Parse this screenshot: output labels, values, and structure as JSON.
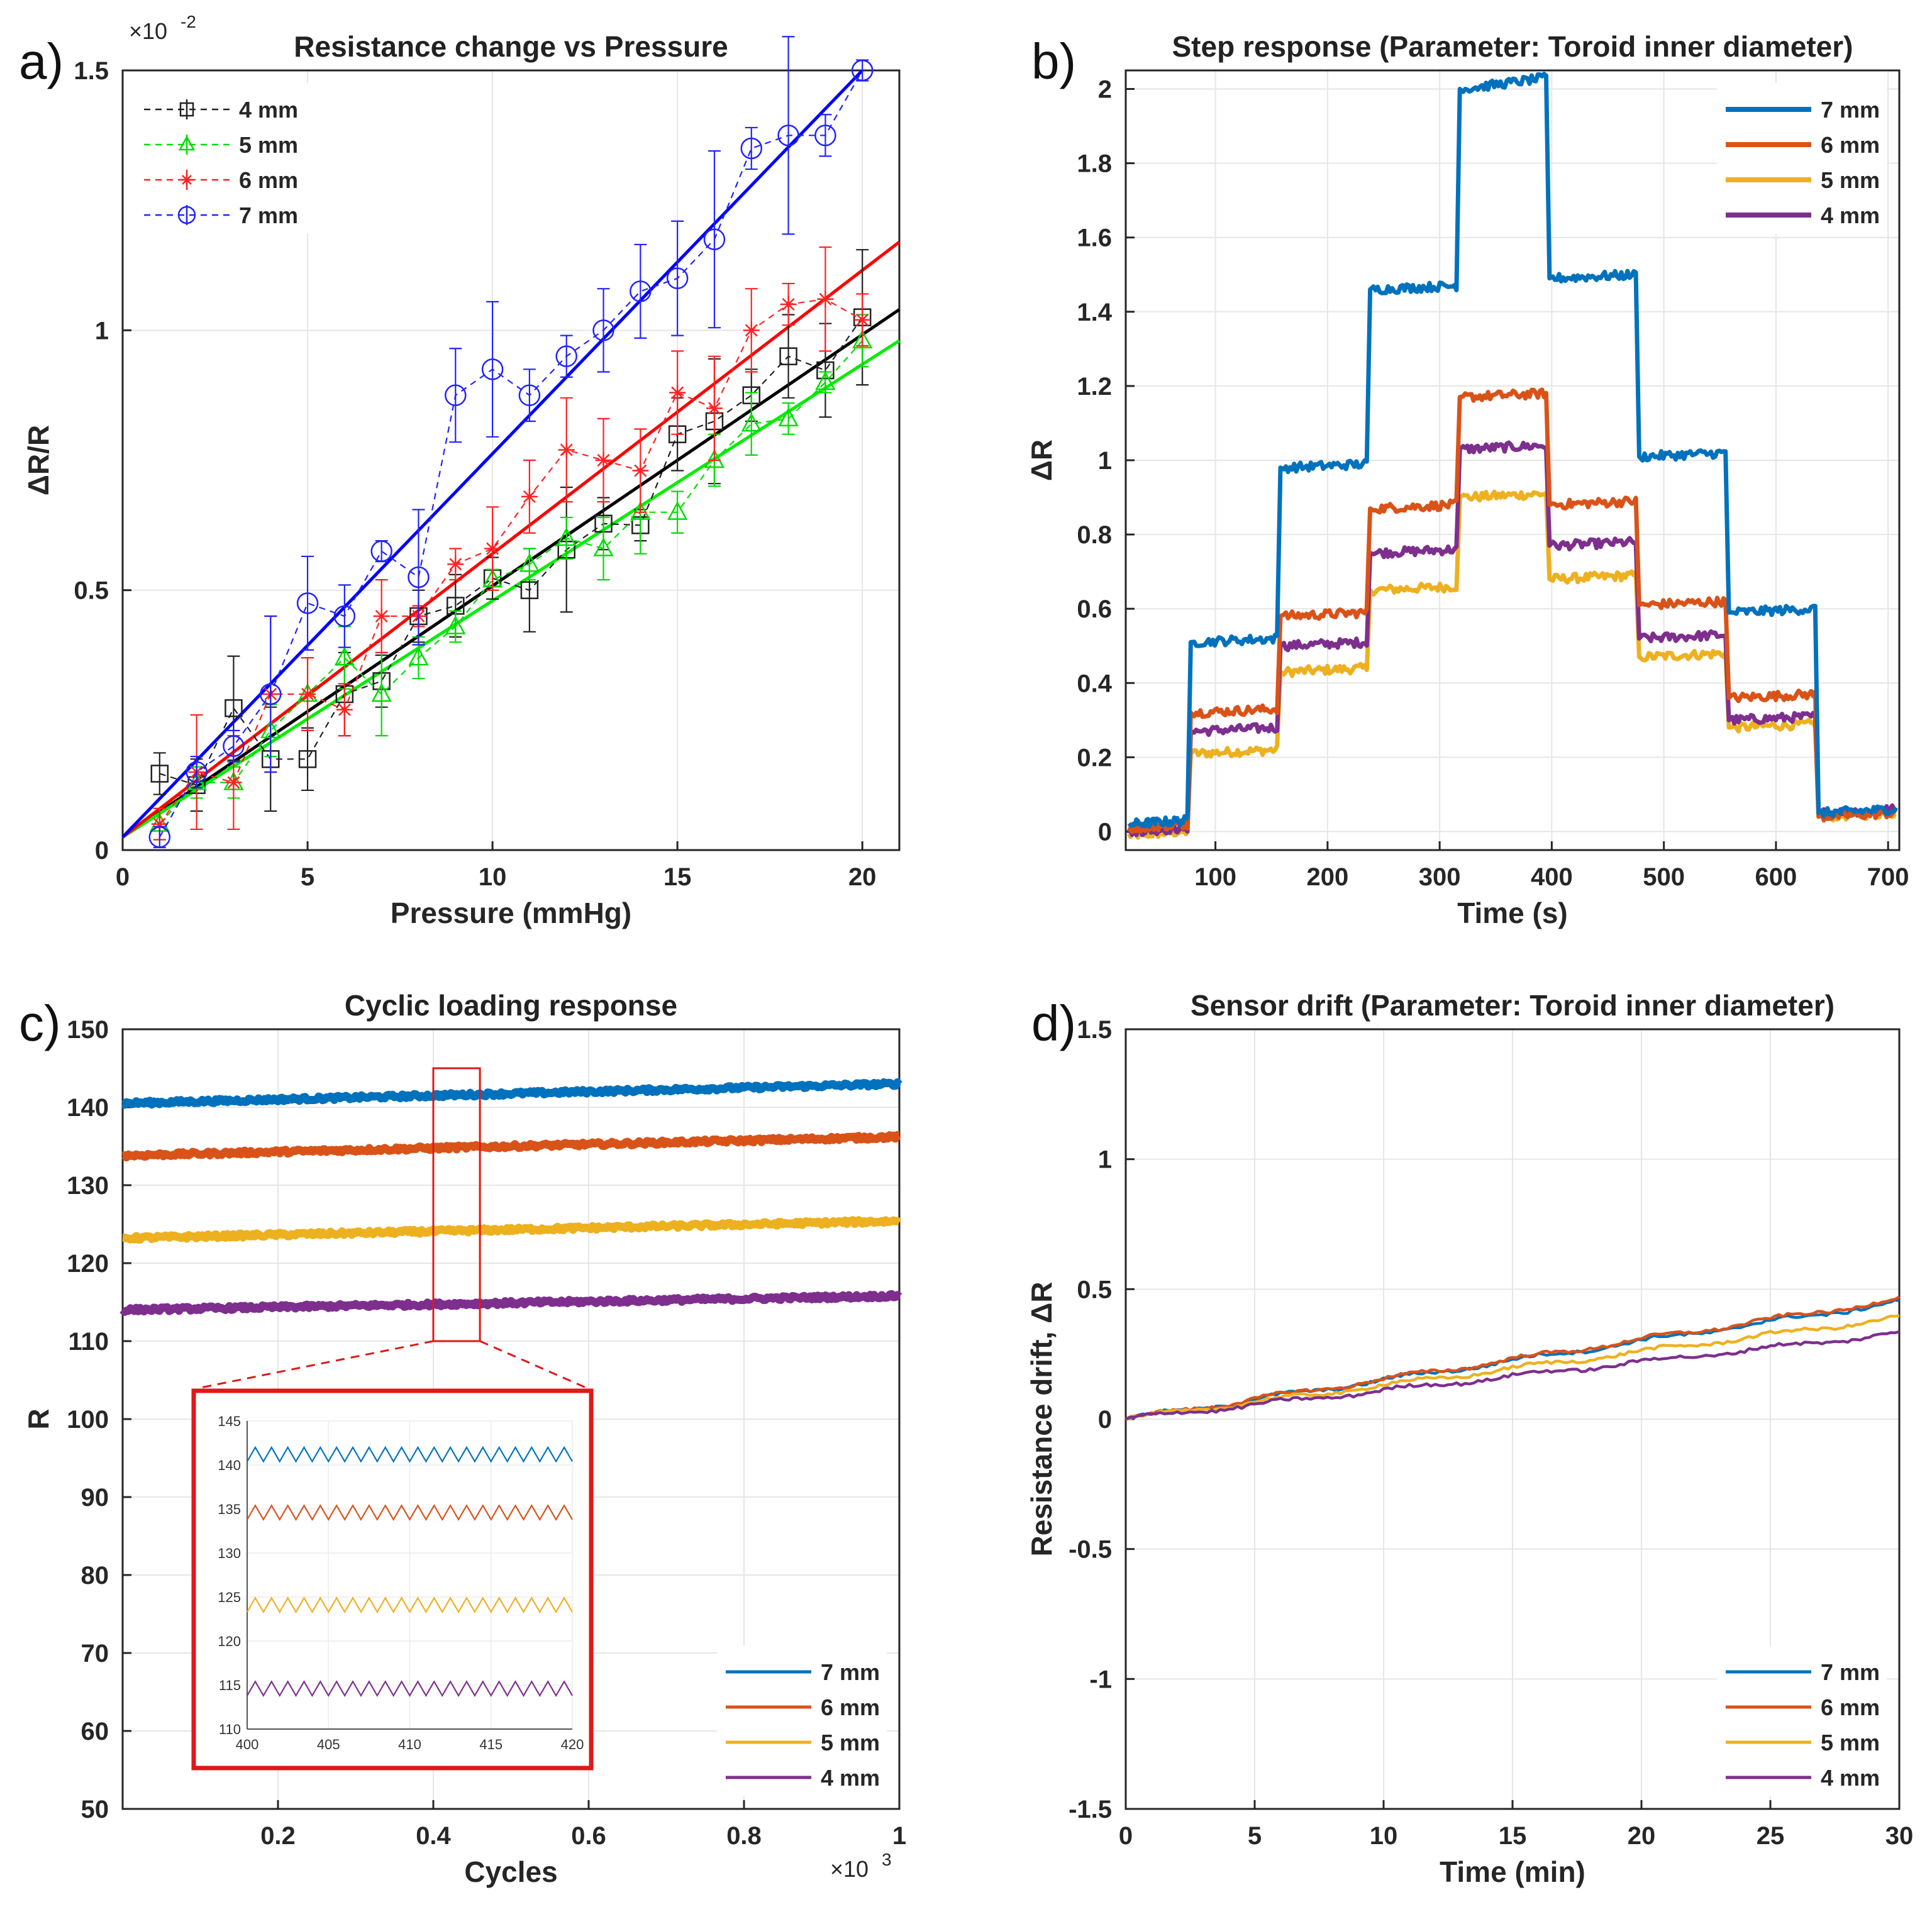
{
  "chart_data": [
    {
      "panel": "a)",
      "type": "line",
      "title": "Resistance change vs Pressure",
      "xlabel": "Pressure (mmHg)",
      "ylabel": "ΔR/R",
      "xlim": [
        0,
        21
      ],
      "ylim": [
        0,
        0.015
      ],
      "xticks": [
        0,
        5,
        10,
        15,
        20
      ],
      "xtick_labels": [
        "0",
        "5",
        "10",
        "15",
        "20"
      ],
      "yticks": [
        0,
        0.005,
        0.01,
        0.015
      ],
      "ytick_labels": [
        "0",
        "0.5",
        "1",
        "1.5"
      ],
      "y_multiplier": "×10",
      "y_multiplier_exp": "-2",
      "grid": true,
      "legend_position": "top-left",
      "x": [
        1,
        2,
        3,
        4,
        5,
        6,
        7,
        8,
        9,
        10,
        11,
        12,
        13,
        14,
        15,
        16,
        17,
        18,
        19,
        20
      ],
      "series": [
        {
          "name": "4 mm",
          "color": "#222222",
          "marker": "square",
          "values": [
            0.00147,
            0.00125,
            0.00273,
            0.00175,
            0.00175,
            0.003,
            0.00325,
            0.0045,
            0.0047,
            0.00523,
            0.005,
            0.00578,
            0.00628,
            0.00625,
            0.008,
            0.00825,
            0.00875,
            0.0095,
            0.00923,
            0.01025
          ],
          "errors": [
            0.0004,
            0.0005,
            0.001,
            0.001,
            0.0006,
            0.0008,
            0.0005,
            0.0005,
            0.0006,
            0.0004,
            0.0008,
            0.0012,
            0.0005,
            0.0003,
            0.0007,
            0.0012,
            0.0005,
            0.0008,
            0.0009,
            0.0013
          ],
          "fit": [
            0.00025,
            0.0104
          ]
        },
        {
          "name": "5 mm",
          "color": "#00dd00",
          "marker": "triangle",
          "values": [
            0.0005,
            0.0013,
            0.0013,
            0.0023,
            0.003,
            0.0037,
            0.003,
            0.0037,
            0.0043,
            0.0052,
            0.0055,
            0.006,
            0.0058,
            0.0065,
            0.0065,
            0.0075,
            0.0082,
            0.0083,
            0.009,
            0.0098
          ],
          "errors": [
            0.0003,
            0.0003,
            0.0003,
            0.0005,
            0.0007,
            0.0006,
            0.0008,
            0.0004,
            0.0003,
            0.0002,
            0.0003,
            0.0004,
            0.0006,
            0.0008,
            0.0004,
            0.0005,
            0.0006,
            0.0003,
            0.0002,
            0.0005
          ],
          "fit": [
            0.00025,
            0.0098
          ]
        },
        {
          "name": "6 mm",
          "color": "#ff2222",
          "marker": "star",
          "values": [
            0.0005,
            0.0015,
            0.0013,
            0.003,
            0.003,
            0.0027,
            0.0045,
            0.0045,
            0.0055,
            0.0058,
            0.0068,
            0.0077,
            0.0075,
            0.0073,
            0.0088,
            0.0085,
            0.01,
            0.0105,
            0.0106,
            0.0102
          ],
          "errors": [
            0.0003,
            0.0011,
            0.0009,
            0.0015,
            0.0007,
            0.0005,
            0.0007,
            0.0002,
            0.0003,
            0.0008,
            0.0007,
            0.001,
            0.0008,
            0.0008,
            0.0008,
            0.001,
            0.0008,
            0.0004,
            0.001,
            0.0005
          ],
          "fit": [
            0.00025,
            0.0117
          ]
        },
        {
          "name": "7 mm",
          "color": "#2222ff",
          "marker": "circle",
          "values": [
            0.00025,
            0.0015,
            0.002,
            0.003,
            0.00475,
            0.0045,
            0.00575,
            0.00525,
            0.00875,
            0.00925,
            0.00875,
            0.0095,
            0.01,
            0.01075,
            0.011,
            0.01175,
            0.0135,
            0.01375,
            0.01375,
            0.015
          ],
          "errors": [
            0.0002,
            0.0003,
            0.0003,
            0.0015,
            0.0009,
            0.0006,
            0.0002,
            0.0013,
            0.0009,
            0.0013,
            0.0005,
            0.0004,
            0.0008,
            0.0009,
            0.0011,
            0.0017,
            0.0004,
            0.0019,
            0.0004,
            0.0002
          ],
          "fit": [
            0.00025,
            0.015
          ]
        }
      ]
    },
    {
      "panel": "b)",
      "type": "line",
      "title": "Step response (Parameter: Toroid inner diameter)",
      "xlabel": "Time (s)",
      "ylabel": "ΔR",
      "xlim": [
        20,
        710
      ],
      "ylim": [
        -0.05,
        2.05
      ],
      "xticks": [
        100,
        200,
        300,
        400,
        500,
        600,
        700
      ],
      "xtick_labels": [
        "100",
        "200",
        "300",
        "400",
        "500",
        "600",
        "700"
      ],
      "yticks": [
        0,
        0.2,
        0.4,
        0.6,
        0.8,
        1,
        1.2,
        1.4,
        1.6,
        1.8,
        2
      ],
      "ytick_labels": [
        "0",
        "0.2",
        "0.4",
        "0.6",
        "0.8",
        "1",
        "1.2",
        "1.4",
        "1.6",
        "1.8",
        "2"
      ],
      "grid": true,
      "legend_position": "top-right",
      "step_edges_s": [
        20,
        78,
        158,
        238,
        318,
        398,
        478,
        558,
        638,
        710
      ],
      "series": [
        {
          "name": "7 mm",
          "color": "#0072BD",
          "levels": [
            0.02,
            0.51,
            0.98,
            1.46,
            2.0,
            1.49,
            1.01,
            0.59,
            0.05
          ]
        },
        {
          "name": "6 mm",
          "color": "#D95319",
          "levels": [
            0.01,
            0.32,
            0.58,
            0.87,
            1.17,
            0.88,
            0.61,
            0.36,
            0.04
          ]
        },
        {
          "name": "5 mm",
          "color": "#EDB120",
          "levels": [
            -0.01,
            0.21,
            0.43,
            0.65,
            0.9,
            0.68,
            0.47,
            0.28,
            0.04
          ]
        },
        {
          "name": "4 mm",
          "color": "#7E2F8E",
          "levels": [
            0.0,
            0.27,
            0.5,
            0.75,
            1.03,
            0.77,
            0.52,
            0.3,
            0.05
          ]
        }
      ]
    },
    {
      "panel": "c)",
      "type": "line",
      "title": "Cyclic loading response",
      "xlabel": "Cycles",
      "ylabel": "R",
      "xlim": [
        0,
        1
      ],
      "ylim": [
        50,
        150
      ],
      "x_multiplier": "×10",
      "x_multiplier_exp": "3",
      "xticks": [
        0.2,
        0.4,
        0.6,
        0.8,
        1
      ],
      "xtick_labels": [
        "0.2",
        "0.4",
        "0.6",
        "0.8",
        "1"
      ],
      "yticks": [
        50,
        60,
        70,
        80,
        90,
        100,
        110,
        120,
        130,
        140,
        150
      ],
      "ytick_labels": [
        "50",
        "60",
        "70",
        "80",
        "90",
        "100",
        "110",
        "120",
        "130",
        "140",
        "150"
      ],
      "grid": true,
      "legend_position": "bottom-right",
      "highlight_x_range": [
        0.4,
        0.46
      ],
      "highlight_y_range": [
        110,
        145
      ],
      "series": [
        {
          "name": "7 mm",
          "color": "#0072BD",
          "start": 140.5,
          "end": 143.0
        },
        {
          "name": "6 mm",
          "color": "#D95319",
          "start": 133.8,
          "end": 136.2
        },
        {
          "name": "5 mm",
          "color": "#EDB120",
          "start": 123.2,
          "end": 125.4
        },
        {
          "name": "4 mm",
          "color": "#7E2F8E",
          "start": 114.0,
          "end": 115.8
        }
      ],
      "inset": {
        "xlim": [
          400,
          420
        ],
        "ylim": [
          110,
          145
        ],
        "xticks": [
          400,
          405,
          410,
          415,
          420
        ],
        "xtick_labels": [
          "400",
          "405",
          "410",
          "415",
          "420"
        ],
        "yticks": [
          110,
          115,
          120,
          125,
          130,
          135,
          140,
          145
        ],
        "ytick_labels": [
          "110",
          "115",
          "120",
          "125",
          "130",
          "135",
          "140",
          "145"
        ],
        "levels": [
          141.2,
          134.6,
          124.1,
          114.6
        ],
        "amplitude": 0.8,
        "cycles": 20
      }
    },
    {
      "panel": "d)",
      "type": "line",
      "title": "Sensor drift (Parameter: Toroid inner diameter)",
      "xlabel": "Time (min)",
      "ylabel": "Resistance drift, ΔR",
      "xlim": [
        0,
        30
      ],
      "ylim": [
        -1.5,
        1.5
      ],
      "xticks": [
        0,
        5,
        10,
        15,
        20,
        25,
        30
      ],
      "xtick_labels": [
        "0",
        "5",
        "10",
        "15",
        "20",
        "25",
        "30"
      ],
      "yticks": [
        -1.5,
        -1,
        -0.5,
        0,
        0.5,
        1,
        1.5
      ],
      "ytick_labels": [
        "-1.5",
        "-1",
        "-0.5",
        "0",
        "0.5",
        "1",
        "1.5"
      ],
      "grid": true,
      "legend_position": "bottom-right",
      "series": [
        {
          "name": "7 mm",
          "color": "#0072BD",
          "end": 0.45
        },
        {
          "name": "6 mm",
          "color": "#D95319",
          "end": 0.46
        },
        {
          "name": "5 mm",
          "color": "#EDB120",
          "end": 0.39
        },
        {
          "name": "4 mm",
          "color": "#7E2F8E",
          "end": 0.33
        }
      ]
    }
  ]
}
